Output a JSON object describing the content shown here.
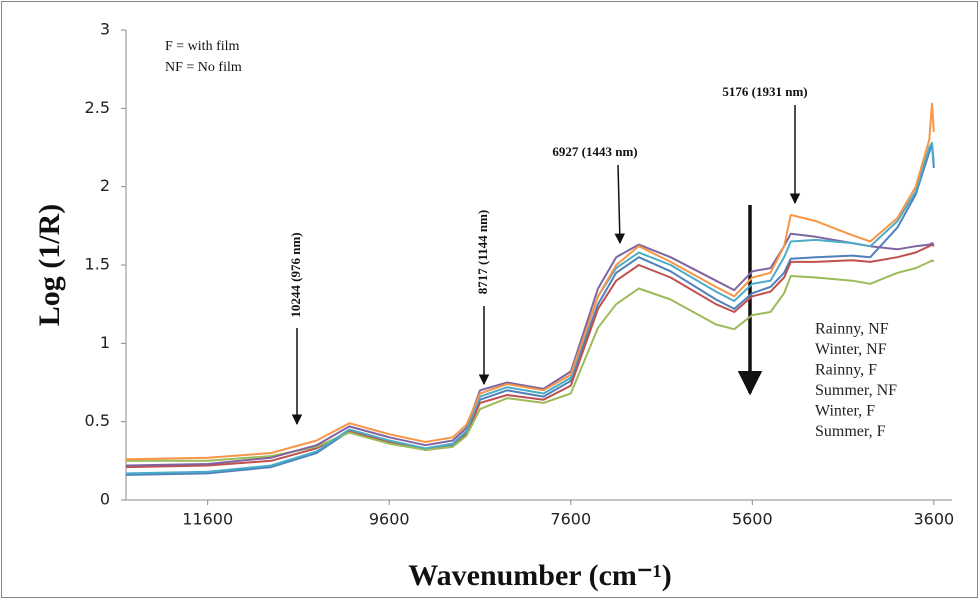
{
  "chart_data": {
    "type": "line",
    "x_label": "Wavenumber (cm⁻¹)",
    "y_label": "Log (1/R)",
    "key_text": [
      "F = with film",
      "NF = No film"
    ],
    "annotations": [
      "10244 (976 nm)",
      "8717 (1144 nm)",
      "6927 (1443 nm)",
      "5176 (1931 nm)"
    ],
    "xlim": [
      12500,
      3400
    ],
    "xticks": [
      11600,
      9600,
      7600,
      5600,
      3600
    ],
    "ylim": [
      0,
      3
    ],
    "yticks": [
      0,
      0.5,
      1,
      1.5,
      2,
      2.5,
      3
    ],
    "x": [
      12500,
      11600,
      10900,
      10400,
      10040,
      9600,
      9200,
      8900,
      8750,
      8600,
      8300,
      7900,
      7600,
      7300,
      7100,
      6850,
      6500,
      6000,
      5800,
      5600,
      5400,
      5250,
      5176,
      4900,
      4500,
      4300,
      4000,
      3800,
      3650,
      3620,
      3600
    ],
    "series": [
      {
        "name": "Rainny, NF",
        "color": "#4f81bd",
        "values": [
          0.16,
          0.17,
          0.21,
          0.3,
          0.44,
          0.37,
          0.32,
          0.35,
          0.43,
          0.64,
          0.7,
          0.66,
          0.76,
          1.25,
          1.45,
          1.55,
          1.46,
          1.28,
          1.22,
          1.32,
          1.36,
          1.45,
          1.54,
          1.55,
          1.56,
          1.55,
          1.74,
          1.95,
          2.22,
          2.27,
          2.12
        ]
      },
      {
        "name": "Winter, NF",
        "color": "#c0504d",
        "values": [
          0.21,
          0.22,
          0.25,
          0.33,
          0.44,
          0.37,
          0.32,
          0.34,
          0.42,
          0.62,
          0.67,
          0.64,
          0.73,
          1.22,
          1.4,
          1.5,
          1.42,
          1.25,
          1.2,
          1.3,
          1.33,
          1.42,
          1.52,
          1.52,
          1.53,
          1.52,
          1.55,
          1.58,
          1.62,
          1.63,
          1.62
        ]
      },
      {
        "name": "Rainny, F",
        "color": "#9bbb59",
        "values": [
          0.25,
          0.25,
          0.28,
          0.34,
          0.43,
          0.36,
          0.32,
          0.34,
          0.41,
          0.58,
          0.65,
          0.62,
          0.68,
          1.1,
          1.25,
          1.35,
          1.28,
          1.12,
          1.09,
          1.18,
          1.2,
          1.32,
          1.43,
          1.42,
          1.4,
          1.38,
          1.45,
          1.48,
          1.52,
          1.53,
          1.52
        ]
      },
      {
        "name": "Summer, NF",
        "color": "#8064a2",
        "values": [
          0.22,
          0.23,
          0.27,
          0.35,
          0.47,
          0.4,
          0.35,
          0.38,
          0.46,
          0.7,
          0.75,
          0.71,
          0.82,
          1.35,
          1.55,
          1.63,
          1.55,
          1.4,
          1.34,
          1.46,
          1.48,
          1.62,
          1.7,
          1.68,
          1.64,
          1.62,
          1.6,
          1.62,
          1.63,
          1.64,
          1.63
        ]
      },
      {
        "name": "Winter, F",
        "color": "#4bacc6",
        "values": [
          0.17,
          0.18,
          0.22,
          0.31,
          0.45,
          0.38,
          0.33,
          0.36,
          0.44,
          0.66,
          0.72,
          0.68,
          0.78,
          1.3,
          1.48,
          1.58,
          1.5,
          1.33,
          1.27,
          1.38,
          1.4,
          1.55,
          1.65,
          1.66,
          1.64,
          1.62,
          1.78,
          1.97,
          2.25,
          2.28,
          2.15
        ]
      },
      {
        "name": "Summer, F",
        "color": "#f79646",
        "values": [
          0.26,
          0.27,
          0.3,
          0.38,
          0.49,
          0.42,
          0.37,
          0.4,
          0.48,
          0.68,
          0.74,
          0.7,
          0.8,
          1.3,
          1.5,
          1.62,
          1.52,
          1.36,
          1.3,
          1.42,
          1.45,
          1.62,
          1.82,
          1.78,
          1.69,
          1.65,
          1.8,
          2.0,
          2.3,
          2.53,
          2.35
        ]
      }
    ]
  }
}
